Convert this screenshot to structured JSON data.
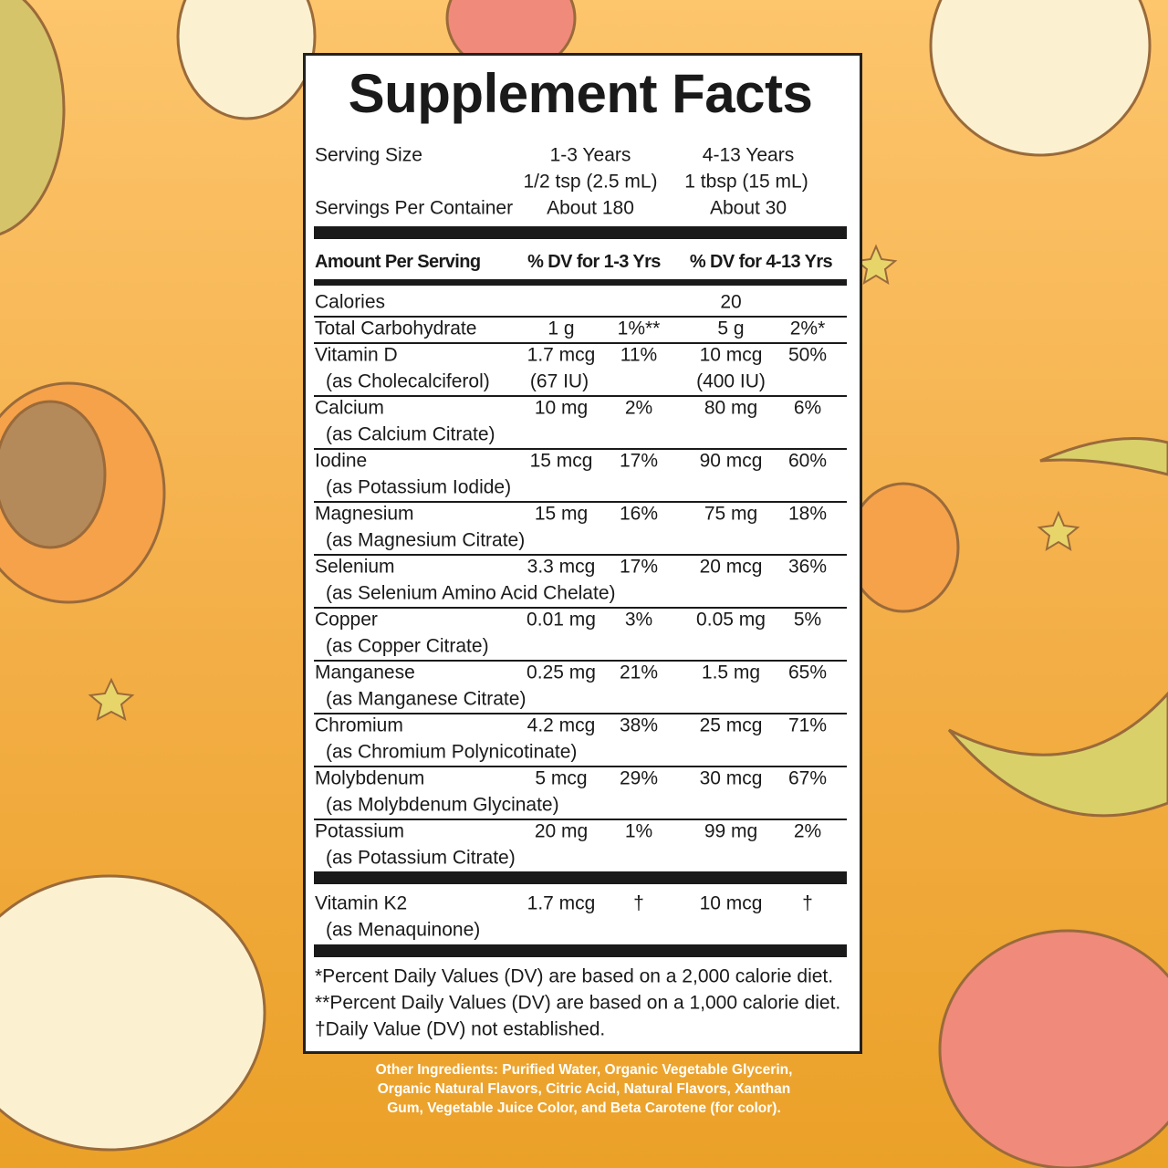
{
  "title": "Supplement Facts",
  "serving": {
    "size_label": "Serving Size",
    "group1": "1-3 Years",
    "group2": "4-13 Years",
    "size1": "1/2 tsp (2.5 mL)",
    "size2": "1 tbsp (15 mL)",
    "per_container_label": "Servings Per Container",
    "per_container1": "About 180",
    "per_container2": "About 30"
  },
  "header": [
    "Amount Per Serving",
    "% DV for 1-3 Yrs",
    "% DV for 4-13 Yrs"
  ],
  "rows": [
    {
      "name": "Calories",
      "amount2": "20"
    },
    {
      "name": "Total Carbohydrate",
      "amount1": "1 g",
      "dv1": "1%**",
      "amount2": "5 g",
      "dv2": "2%*"
    },
    {
      "name": "Vitamin D",
      "source": "(as Cholecalciferol)",
      "amount1": "1.7 mcg",
      "amount1_alt": "(67 IU)",
      "dv1": "11%",
      "amount2": "10 mcg",
      "amount2_alt": "(400 IU)",
      "dv2": "50%"
    },
    {
      "name": "Calcium",
      "source": "(as Calcium Citrate)",
      "amount1": "10 mg",
      "dv1": "2%",
      "amount2": "80 mg",
      "dv2": "6%"
    },
    {
      "name": "Iodine",
      "source": "(as Potassium Iodide)",
      "amount1": "15 mcg",
      "dv1": "17%",
      "amount2": "90 mcg",
      "dv2": "60%"
    },
    {
      "name": "Magnesium",
      "source": "(as Magnesium Citrate)",
      "amount1": "15 mg",
      "dv1": "16%",
      "amount2": "75 mg",
      "dv2": "18%"
    },
    {
      "name": "Selenium",
      "source": "(as Selenium Amino Acid Chelate)",
      "amount1": "3.3 mcg",
      "dv1": "17%",
      "amount2": "20 mcg",
      "dv2": "36%"
    },
    {
      "name": "Copper",
      "source": "(as Copper Citrate)",
      "amount1": "0.01 mg",
      "dv1": "3%",
      "amount2": "0.05 mg",
      "dv2": "5%"
    },
    {
      "name": "Manganese",
      "source": "(as Manganese Citrate)",
      "amount1": "0.25 mg",
      "dv1": "21%",
      "amount2": "1.5 mg",
      "dv2": "65%"
    },
    {
      "name": "Chromium",
      "source": "(as Chromium Polynicotinate)",
      "amount1": "4.2 mcg",
      "dv1": "38%",
      "amount2": "25 mcg",
      "dv2": "71%"
    },
    {
      "name": "Molybdenum",
      "source": "(as Molybdenum Glycinate)",
      "amount1": "5 mcg",
      "dv1": "29%",
      "amount2": "30 mcg",
      "dv2": "67%"
    },
    {
      "name": "Potassium",
      "source": "(as Potassium Citrate)",
      "amount1": "20 mg",
      "dv1": "1%",
      "amount2": "99 mg",
      "dv2": "2%"
    }
  ],
  "additional_rows": [
    {
      "name": "Vitamin K2",
      "source": "(as Menaquinone)",
      "amount1": "1.7 mcg",
      "dv1": "†",
      "amount2": "10 mcg",
      "dv2": "†"
    }
  ],
  "footnotes": [
    "*Percent Daily Values (DV) are based on a 2,000 calorie diet.",
    "**Percent Daily Values (DV) are based on a 1,000 calorie diet.",
    "†Daily Value (DV) not established."
  ],
  "other_ingredients": [
    "Other Ingredients: Purified Water, Organic Vegetable Glycerin,",
    "Organic Natural Flavors, Citric Acid, Natural Flavors, Xanthan",
    "Gum, Vegetable Juice Color, and Beta Carotene (for color)."
  ]
}
